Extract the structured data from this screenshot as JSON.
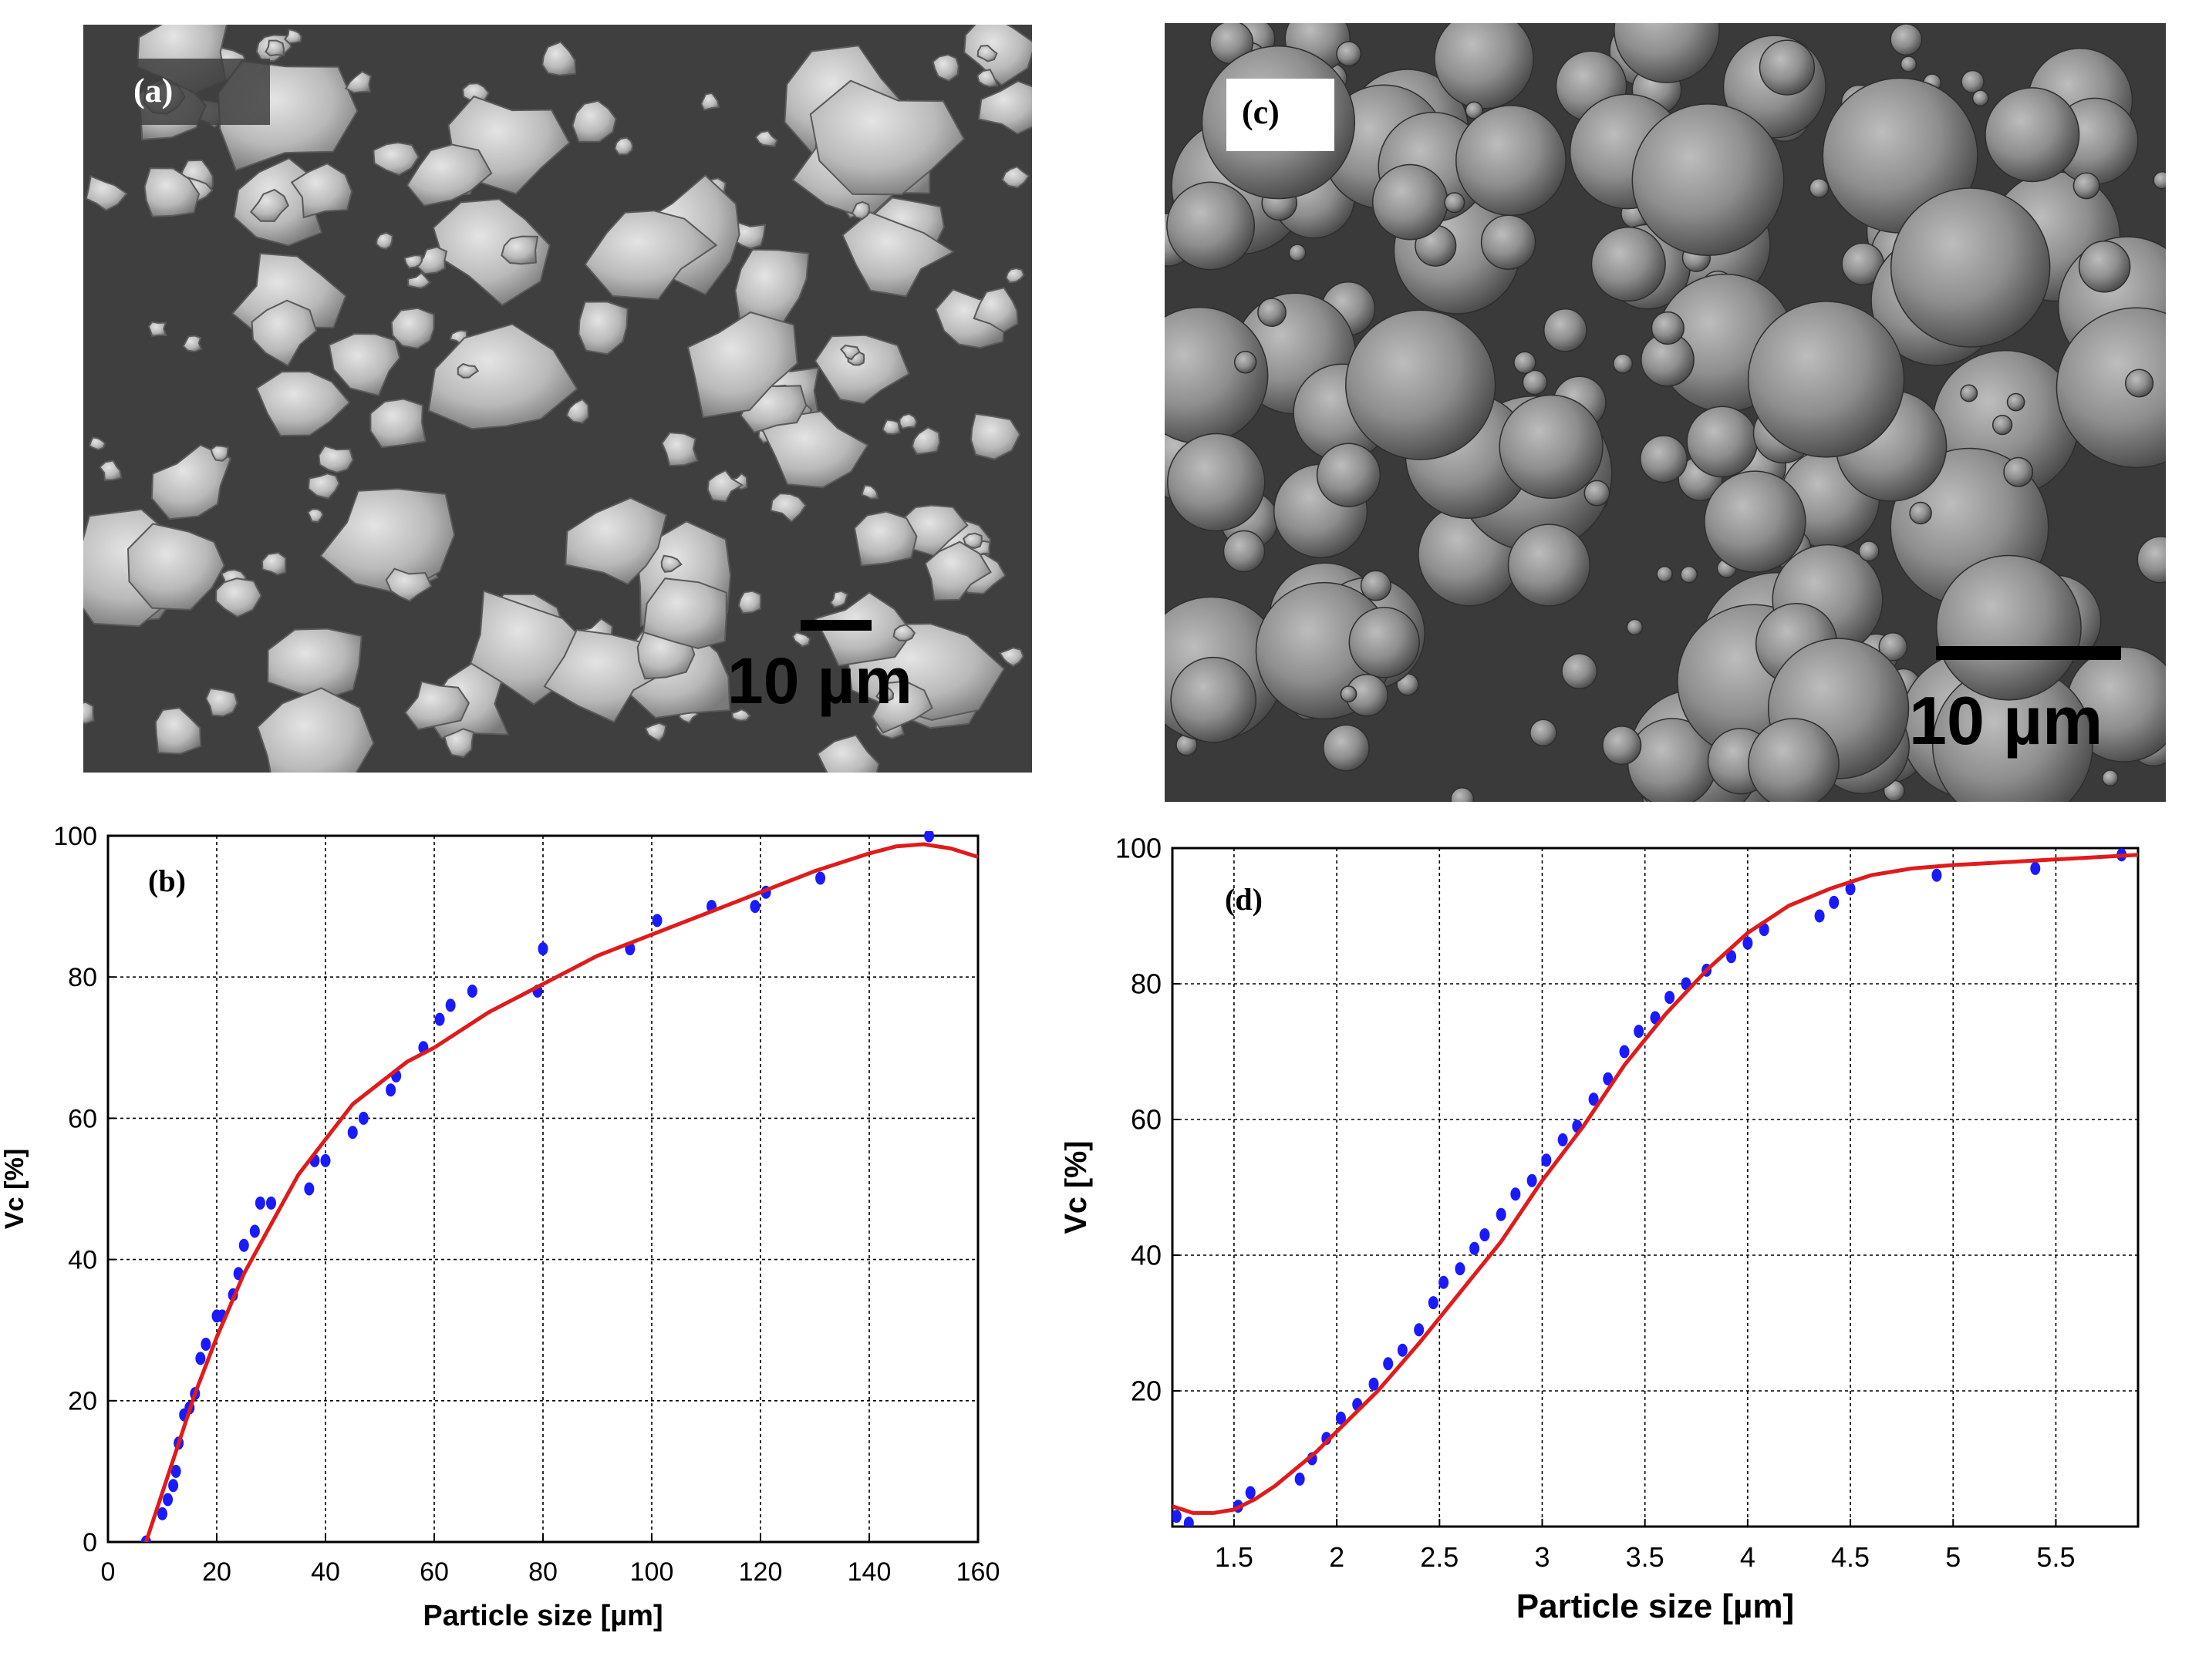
{
  "panel_a": {
    "label": "(a)",
    "scale_bar": "10 µm"
  },
  "panel_c": {
    "label": "(c)",
    "scale_bar": "10 µm"
  },
  "chart_data": [
    {
      "panel": "(b)",
      "type": "scatter",
      "xlabel": "Particle size [µm]",
      "ylabel": "Vc [%]",
      "xlim": [
        0,
        160
      ],
      "ylim": [
        0,
        100
      ],
      "xticks": [
        0,
        20,
        40,
        60,
        80,
        100,
        120,
        140,
        160
      ],
      "yticks": [
        0,
        20,
        40,
        60,
        80,
        100
      ],
      "grid": true,
      "series": [
        {
          "kind": "points",
          "color": "#1a1aff",
          "x": [
            7,
            10,
            11,
            12,
            12.5,
            13,
            14,
            15,
            16,
            17,
            18,
            20,
            21,
            23,
            24,
            25,
            27,
            28,
            30,
            37,
            38,
            40,
            45,
            47,
            52,
            53,
            58,
            61,
            63,
            67,
            79,
            80,
            96,
            101,
            111,
            119,
            121,
            131,
            151
          ],
          "y": [
            0,
            4,
            6,
            8,
            10,
            14,
            18,
            19,
            21,
            26,
            28,
            32,
            32,
            35,
            38,
            42,
            44,
            48,
            48,
            50,
            54,
            54,
            58,
            60,
            64,
            66,
            70,
            74,
            76,
            78,
            78,
            84,
            84,
            88,
            90,
            90,
            92,
            94,
            100
          ]
        },
        {
          "kind": "fit",
          "color": "#e01b1b",
          "x": [
            7,
            10,
            13,
            16,
            20,
            25,
            30,
            35,
            40,
            45,
            50,
            55,
            60,
            70,
            80,
            90,
            100,
            110,
            120,
            130,
            140,
            145,
            150,
            155,
            160
          ],
          "y": [
            0,
            7,
            14,
            21,
            29,
            38,
            45,
            52,
            57,
            62,
            65,
            68,
            70,
            75,
            79,
            83,
            86,
            89,
            92,
            95,
            97.5,
            98.5,
            98.8,
            98.2,
            97
          ]
        }
      ]
    },
    {
      "panel": "(d)",
      "type": "scatter",
      "xlabel": "Particle size [µm]",
      "ylabel": "Vc [%]",
      "xlim": [
        1.2,
        5.9
      ],
      "ylim": [
        0,
        100
      ],
      "xticks": [
        1.5,
        2,
        2.5,
        3,
        3.5,
        4,
        4.5,
        5,
        5.5
      ],
      "yticks": [
        20,
        40,
        60,
        80,
        100
      ],
      "grid": true,
      "series": [
        {
          "kind": "points",
          "color": "#1a1aff",
          "x": [
            1.22,
            1.28,
            1.52,
            1.58,
            1.82,
            1.88,
            1.95,
            2.02,
            2.1,
            2.18,
            2.25,
            2.32,
            2.4,
            2.47,
            2.52,
            2.6,
            2.67,
            2.72,
            2.8,
            2.87,
            2.95,
            3.02,
            3.1,
            3.17,
            3.25,
            3.32,
            3.4,
            3.47,
            3.55,
            3.62,
            3.7,
            3.8,
            3.92,
            4.0,
            4.08,
            4.35,
            4.42,
            4.5,
            4.92,
            5.4,
            5.82
          ],
          "y": [
            1.5,
            0.5,
            3,
            5,
            7,
            10,
            13,
            16,
            18,
            21,
            24,
            26,
            29,
            33,
            36,
            38,
            41,
            43,
            46,
            49,
            51,
            54,
            57,
            59,
            63,
            66,
            70,
            73,
            75,
            78,
            80,
            82,
            84,
            86,
            88,
            90,
            92,
            94,
            96,
            97,
            99
          ]
        },
        {
          "kind": "fit",
          "color": "#e01b1b",
          "x": [
            1.2,
            1.3,
            1.4,
            1.5,
            1.6,
            1.7,
            1.8,
            1.9,
            2.0,
            2.2,
            2.4,
            2.6,
            2.8,
            3.0,
            3.2,
            3.4,
            3.6,
            3.8,
            4.0,
            4.2,
            4.4,
            4.6,
            4.8,
            5.0,
            5.3,
            5.6,
            5.9
          ],
          "y": [
            3,
            2,
            2,
            2.5,
            4,
            6,
            8.5,
            11,
            14,
            20,
            27,
            34.5,
            42,
            51,
            59,
            68,
            75.5,
            82,
            87.5,
            91.5,
            94,
            96,
            97,
            97.5,
            98,
            98.5,
            99
          ]
        }
      ]
    }
  ]
}
